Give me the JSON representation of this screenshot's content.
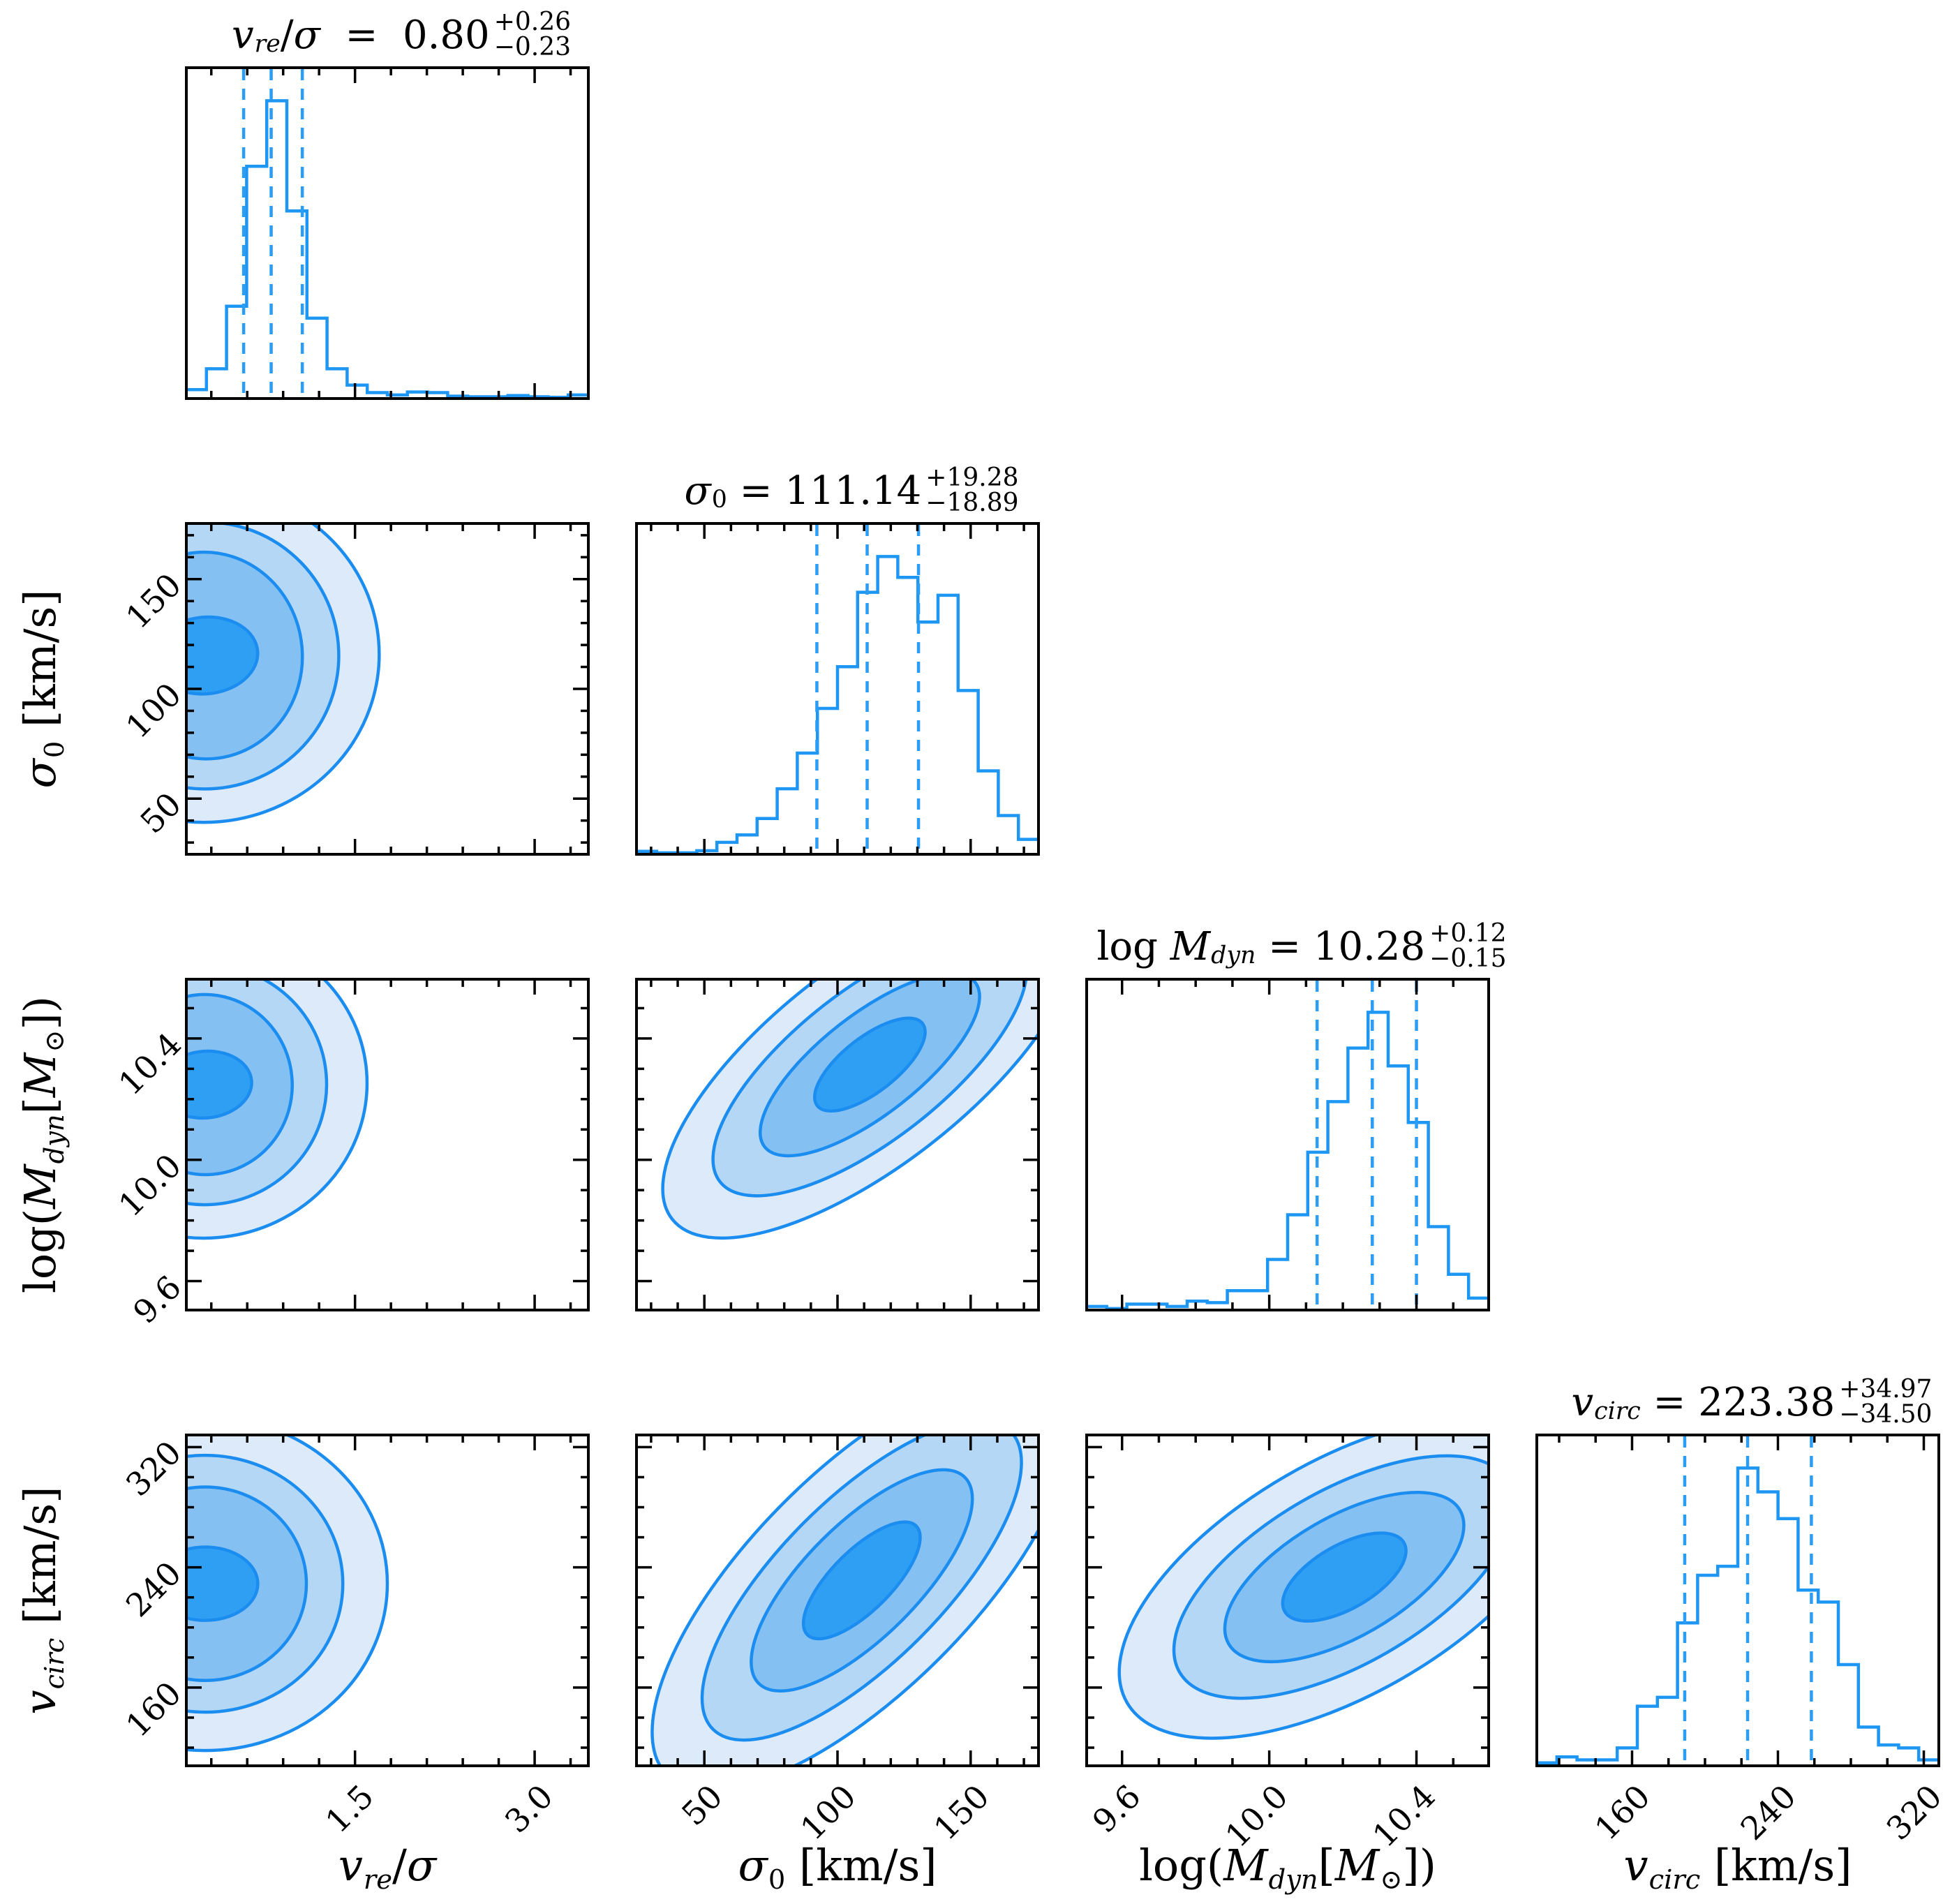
{
  "figure": {
    "background": "#ffffff",
    "frame_color": "#000000",
    "tick_color": "#000000",
    "text_color": "#000000"
  },
  "style": {
    "contour_line_color": "#1b8df0",
    "hist_line_color": "#1e96f3",
    "quantile_line_color": "#2b9df4",
    "fill_levels": [
      "#dceafa",
      "#b5d7f6",
      "#84c1f2",
      "#2f9ff3"
    ]
  },
  "chart_data": {
    "type": "corner",
    "description": "Corner (triangle) plot of MCMC posterior distributions for 4 galaxy kinematics parameters: histograms on the diagonal with 16/50/84 percentile dashed lines, filled density contours below the diagonal.",
    "legend_position": "none",
    "grid": false,
    "parameters": [
      {
        "id": "vre_sigma",
        "axis_label_text": "v_re/σ",
        "axis_label_parts": [
          {
            "t": "v",
            "s": "i"
          },
          {
            "t": "re",
            "s": "sub"
          },
          {
            "t": "/",
            "s": "r"
          },
          {
            "t": "σ",
            "s": "i"
          }
        ],
        "title_text": "v_re/σ  =  0.80 +0.26 −0.23",
        "title_lhs_parts": [
          {
            "t": "v",
            "s": "i"
          },
          {
            "t": "re",
            "s": "sub"
          },
          {
            "t": "/",
            "s": "r"
          },
          {
            "t": "σ",
            "s": "i"
          },
          {
            "t": "  =  ",
            "s": "r"
          }
        ],
        "title_value": "0.80",
        "title_plus": "+0.26",
        "title_minus": "−0.23",
        "range": [
          0.08,
          3.46
        ],
        "major_ticks": [
          1.5,
          3.0
        ],
        "major_tick_labels": [
          "1.5",
          "3.0"
        ],
        "minor_ticks": [
          0.3,
          0.6,
          0.9,
          1.2,
          1.8,
          2.1,
          2.4,
          2.7,
          3.3
        ],
        "quantiles": [
          0.57,
          0.8,
          1.06
        ],
        "hist_norm": [
          0.03,
          0.1,
          0.31,
          0.78,
          1.0,
          0.63,
          0.27,
          0.1,
          0.045,
          0.02,
          0.012,
          0.022,
          0.02,
          0.008,
          0.006,
          0.006,
          0.01,
          0.006,
          0.004,
          0.012
        ]
      },
      {
        "id": "sigma0",
        "axis_label_text": "σ0 [km/s]",
        "axis_label_parts": [
          {
            "t": "σ",
            "s": "i"
          },
          {
            "t": "0",
            "s": "subr"
          },
          {
            "t": " [km/s]",
            "s": "r"
          }
        ],
        "title_text": "σ0 = 111.14 +19.28 −18.89",
        "title_lhs_parts": [
          {
            "t": "σ",
            "s": "i"
          },
          {
            "t": "0",
            "s": "subr"
          },
          {
            "t": " = ",
            "s": "r"
          }
        ],
        "title_value": "111.14",
        "title_plus": "+19.28",
        "title_minus": "−18.89",
        "range": [
          24,
          176
        ],
        "major_ticks": [
          50,
          100,
          150
        ],
        "major_tick_labels": [
          "50",
          "100",
          "150"
        ],
        "minor_ticks": [
          30,
          40,
          60,
          70,
          80,
          90,
          110,
          120,
          130,
          140,
          160,
          170
        ],
        "quantiles": [
          92.25,
          111.14,
          130.42
        ],
        "hist_norm": [
          0.01,
          0.005,
          0.005,
          0.012,
          0.04,
          0.065,
          0.12,
          0.22,
          0.34,
          0.49,
          0.63,
          0.88,
          1.0,
          0.93,
          0.78,
          0.87,
          0.55,
          0.28,
          0.13,
          0.05
        ]
      },
      {
        "id": "log_mdyn",
        "axis_label_text": "log(M_dyn[M_⊙])",
        "axis_label_parts": [
          {
            "t": "log(",
            "s": "r"
          },
          {
            "t": "M",
            "s": "i"
          },
          {
            "t": "dyn",
            "s": "sub"
          },
          {
            "t": "[",
            "s": "r"
          },
          {
            "t": "M",
            "s": "i"
          },
          {
            "t": "⊙",
            "s": "subr"
          },
          {
            "t": "])",
            "s": "r"
          }
        ],
        "title_text": "log M_dyn = 10.28 +0.12 −0.15",
        "title_lhs_parts": [
          {
            "t": "log ",
            "s": "r"
          },
          {
            "t": "M",
            "s": "i"
          },
          {
            "t": "dyn",
            "s": "sub"
          },
          {
            "t": " = ",
            "s": "r"
          }
        ],
        "title_value": "10.28",
        "title_plus": "+0.12",
        "title_minus": "−0.15",
        "range": [
          9.5,
          10.6
        ],
        "major_ticks": [
          9.6,
          10.0,
          10.4
        ],
        "major_tick_labels": [
          "9.6",
          "10.0",
          "10.4"
        ],
        "minor_ticks": [
          9.7,
          9.8,
          9.9,
          10.1,
          10.2,
          10.3,
          10.5
        ],
        "quantiles": [
          10.13,
          10.28,
          10.4
        ],
        "hist_norm": [
          0.012,
          0.005,
          0.02,
          0.02,
          0.012,
          0.03,
          0.025,
          0.065,
          0.065,
          0.17,
          0.32,
          0.53,
          0.7,
          0.88,
          1.0,
          0.82,
          0.63,
          0.28,
          0.12,
          0.04
        ]
      },
      {
        "id": "v_circ",
        "axis_label_text": "v_circ [km/s]",
        "axis_label_parts": [
          {
            "t": "v",
            "s": "i"
          },
          {
            "t": "circ",
            "s": "sub"
          },
          {
            "t": " [km/s]",
            "s": "r"
          }
        ],
        "title_text": "v_circ = 223.38 +34.97 −34.50",
        "title_lhs_parts": [
          {
            "t": "v",
            "s": "i"
          },
          {
            "t": "circ",
            "s": "sub"
          },
          {
            "t": " = ",
            "s": "r"
          }
        ],
        "title_value": "223.38",
        "title_plus": "+34.97",
        "title_minus": "−34.50",
        "range": [
          107,
          329
        ],
        "major_ticks": [
          160,
          240,
          320
        ],
        "major_tick_labels": [
          "160",
          "240",
          "320"
        ],
        "minor_ticks": [
          120,
          140,
          180,
          200,
          220,
          260,
          280,
          300
        ],
        "quantiles": [
          188.88,
          223.38,
          258.35
        ],
        "hist_norm": [
          0.01,
          0.03,
          0.02,
          0.02,
          0.06,
          0.2,
          0.23,
          0.48,
          0.64,
          0.67,
          1.0,
          0.92,
          0.83,
          0.59,
          0.55,
          0.34,
          0.13,
          0.07,
          0.06,
          0.02
        ]
      }
    ],
    "contour_panels": [
      {
        "x_param": "vre_sigma",
        "y_param": "sigma0",
        "center": [
          0.05,
          0.6
        ],
        "rot_deg": -5,
        "rx": [
          0.43,
          0.33,
          0.24,
          0.13
        ],
        "ry": [
          0.5,
          0.4,
          0.31,
          0.115
        ]
      },
      {
        "x_param": "vre_sigma",
        "y_param": "log_mdyn",
        "center": [
          0.05,
          0.68
        ],
        "rot_deg": -5,
        "rx": [
          0.4,
          0.3,
          0.215,
          0.115
        ],
        "ry": [
          0.46,
          0.36,
          0.27,
          0.1
        ]
      },
      {
        "x_param": "sigma0",
        "y_param": "log_mdyn",
        "center": [
          0.58,
          0.74
        ],
        "rot_deg": -38,
        "rx": [
          0.62,
          0.47,
          0.33,
          0.165
        ],
        "ry": [
          0.3,
          0.225,
          0.15,
          0.082
        ]
      },
      {
        "x_param": "vre_sigma",
        "y_param": "v_circ",
        "center": [
          0.05,
          0.55
        ],
        "rot_deg": 0,
        "rx": [
          0.45,
          0.34,
          0.25,
          0.13
        ],
        "ry": [
          0.5,
          0.385,
          0.29,
          0.11
        ]
      },
      {
        "x_param": "sigma0",
        "y_param": "v_circ",
        "center": [
          0.56,
          0.56
        ],
        "rot_deg": -45,
        "rx": [
          0.68,
          0.52,
          0.36,
          0.19
        ],
        "ry": [
          0.33,
          0.245,
          0.17,
          0.09
        ]
      },
      {
        "x_param": "log_mdyn",
        "y_param": "v_circ",
        "center": [
          0.64,
          0.57
        ],
        "rot_deg": -30,
        "rx": [
          0.62,
          0.47,
          0.33,
          0.17
        ],
        "ry": [
          0.35,
          0.26,
          0.18,
          0.095
        ]
      }
    ]
  }
}
